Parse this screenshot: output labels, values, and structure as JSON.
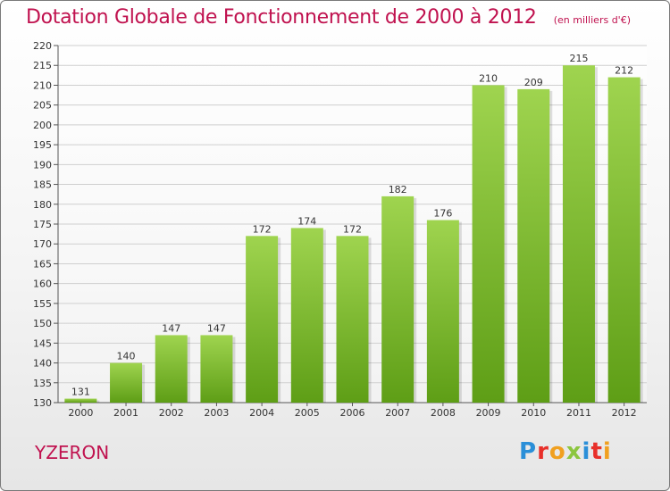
{
  "title": "Dotation Globale de Fonctionnement de 2000 à 2012",
  "unit": "(en milliers d'€)",
  "commune": "YZERON",
  "logo": {
    "letters": [
      "P",
      "r",
      "o",
      "x",
      "i",
      "t",
      "i"
    ],
    "colors": [
      "#2a8fd8",
      "#e8302a",
      "#f0a020",
      "#8cc63f",
      "#2a8fd8",
      "#e8302a",
      "#f0a020"
    ]
  },
  "colors": {
    "title": "#c0124f",
    "bar_light": "#9fd44f",
    "bar_dark": "#5e9e16"
  },
  "chart_data": {
    "type": "bar",
    "categories": [
      "2000",
      "2001",
      "2002",
      "2003",
      "2004",
      "2005",
      "2006",
      "2007",
      "2008",
      "2009",
      "2010",
      "2011",
      "2012"
    ],
    "values": [
      131,
      140,
      147,
      147,
      172,
      174,
      172,
      182,
      176,
      210,
      209,
      215,
      212
    ],
    "ylim": [
      130,
      220
    ],
    "yticks": [
      130,
      135,
      140,
      145,
      150,
      155,
      160,
      165,
      170,
      175,
      180,
      185,
      190,
      195,
      200,
      205,
      210,
      215,
      220
    ],
    "grid": true
  }
}
